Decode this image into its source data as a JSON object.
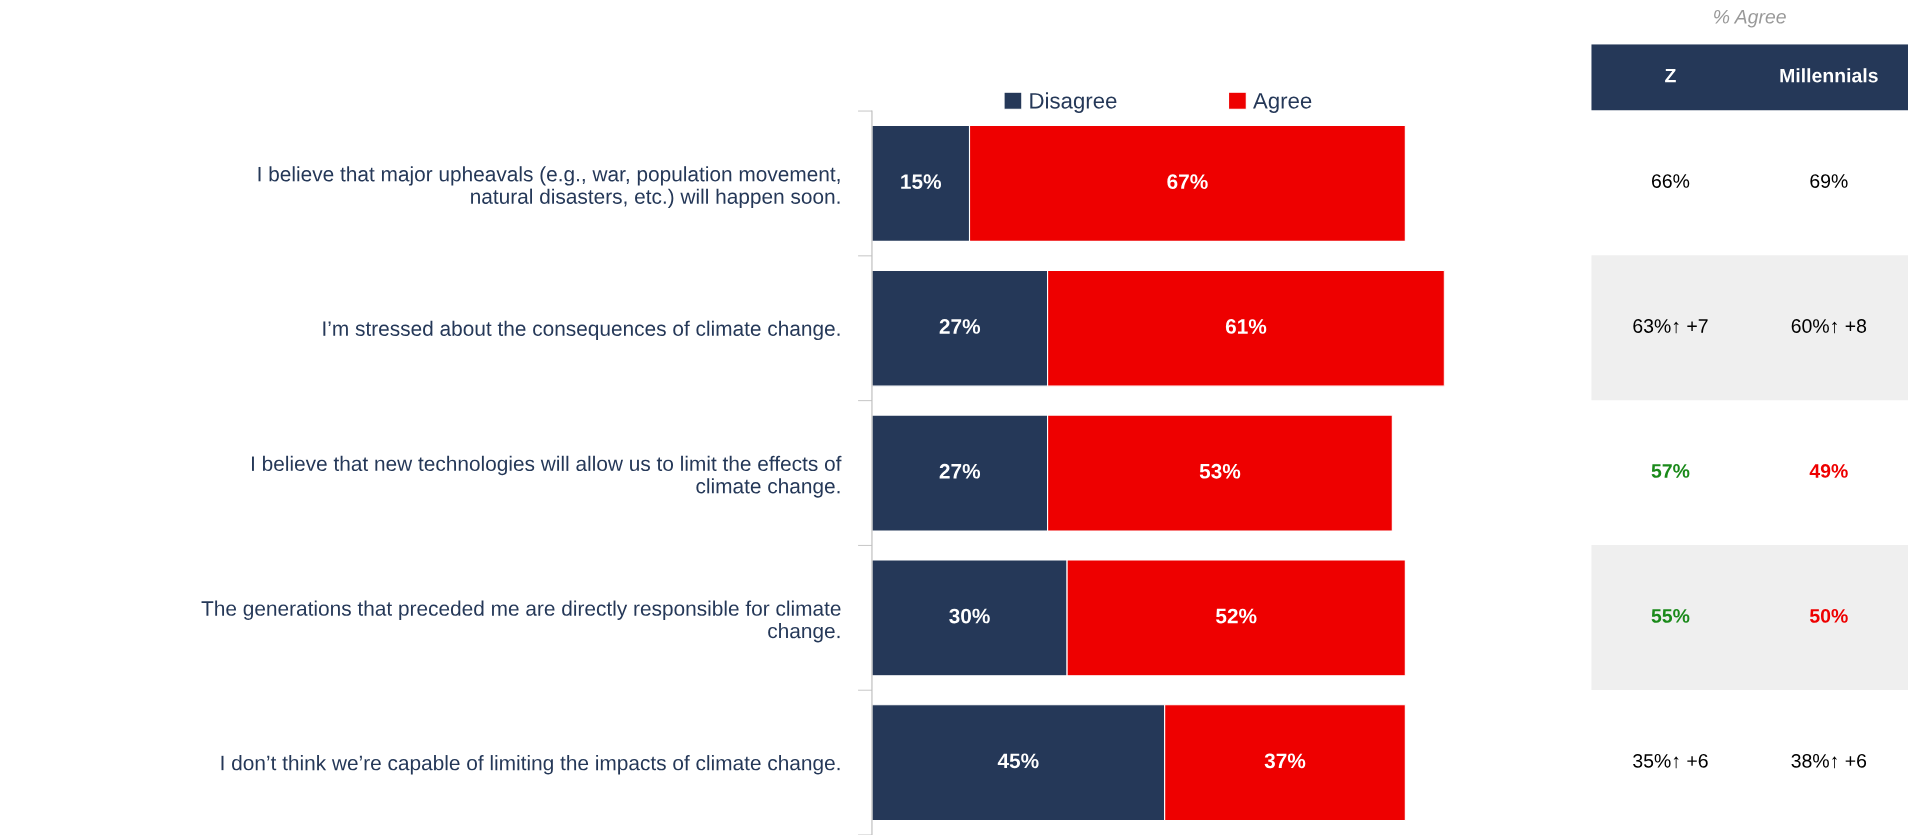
{
  "chart_data": [
    {
      "type": "bar",
      "orientation": "horizontal",
      "stacked": true,
      "legend": "top",
      "categories": [
        "I believe that major upheavals (e.g., war, population movement,\nnatural disasters, etc.) will happen soon.",
        "I’m stressed about the consequences of climate change.",
        "I believe that new technologies will allow us to limit the effects of\nclimate change.",
        "The generations that preceded me are directly responsible for climate\nchange.",
        "I don’t think we’re capable of limiting the impacts of climate change."
      ],
      "series": [
        {
          "name": "Disagree",
          "color": "#253858",
          "values": [
            15,
            27,
            27,
            30,
            45
          ],
          "value_labels": [
            "15%",
            "27%",
            "27%",
            "30%",
            "45%"
          ]
        },
        {
          "name": "Agree",
          "color": "#ee0000",
          "values": [
            67,
            61,
            53,
            52,
            37
          ],
          "value_labels": [
            "67%",
            "61%",
            "53%",
            "52%",
            "37%"
          ]
        }
      ]
    },
    {
      "type": "other",
      "title": "% Agree",
      "categories": [
        "Z",
        "Millennials"
      ],
      "annotations": [
        "66%",
        "69%",
        "63%↑ +7",
        "60%↑ +8",
        "57%",
        "49%",
        "55%",
        "50%",
        "35%↑ +6",
        "38%↑ +6"
      ],
      "colors": [
        "#000000",
        "#000000",
        "#000000",
        "#000000",
        "#1a8a1a",
        "#ee0000",
        "#1a8a1a",
        "#ee0000",
        "#000000",
        "#000000"
      ]
    }
  ]
}
